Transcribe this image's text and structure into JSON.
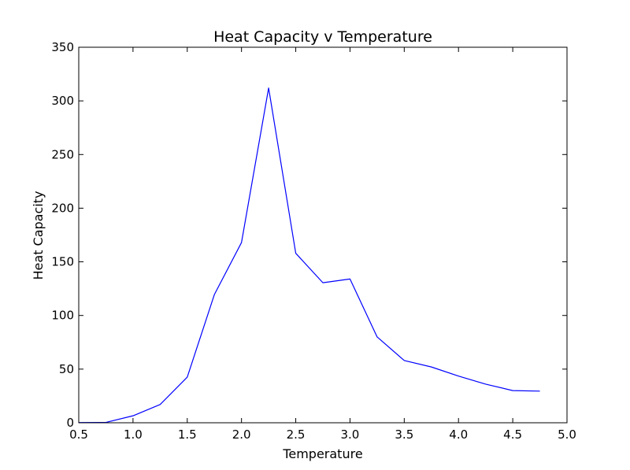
{
  "chart_data": {
    "type": "line",
    "title": "Heat Capacity v Temperature",
    "xlabel": "Temperature",
    "ylabel": "Heat Capacity",
    "xlim": [
      0.5,
      5.0
    ],
    "ylim": [
      0,
      350
    ],
    "xticks": [
      0.5,
      1.0,
      1.5,
      2.0,
      2.5,
      3.0,
      3.5,
      4.0,
      4.5,
      5.0
    ],
    "xtick_labels": [
      "0.5",
      "1.0",
      "1.5",
      "2.0",
      "2.5",
      "3.0",
      "3.5",
      "4.0",
      "4.5",
      "5.0"
    ],
    "yticks": [
      0,
      50,
      100,
      150,
      200,
      250,
      300,
      350
    ],
    "ytick_labels": [
      "0",
      "50",
      "100",
      "150",
      "200",
      "250",
      "300",
      "350"
    ],
    "grid": false,
    "legend": false,
    "series": [
      {
        "color": "#0000ff",
        "x": [
          0.5,
          0.75,
          1.0,
          1.25,
          1.5,
          1.75,
          2.0,
          2.25,
          2.5,
          2.75,
          3.0,
          3.25,
          3.5,
          3.75,
          4.0,
          4.25,
          4.5,
          4.75
        ],
        "y": [
          0.2,
          0.3,
          6.5,
          17,
          42.5,
          119.5,
          168,
          312,
          158,
          130.5,
          134,
          80,
          58,
          52,
          43.5,
          36,
          30,
          29.5
        ]
      }
    ]
  }
}
